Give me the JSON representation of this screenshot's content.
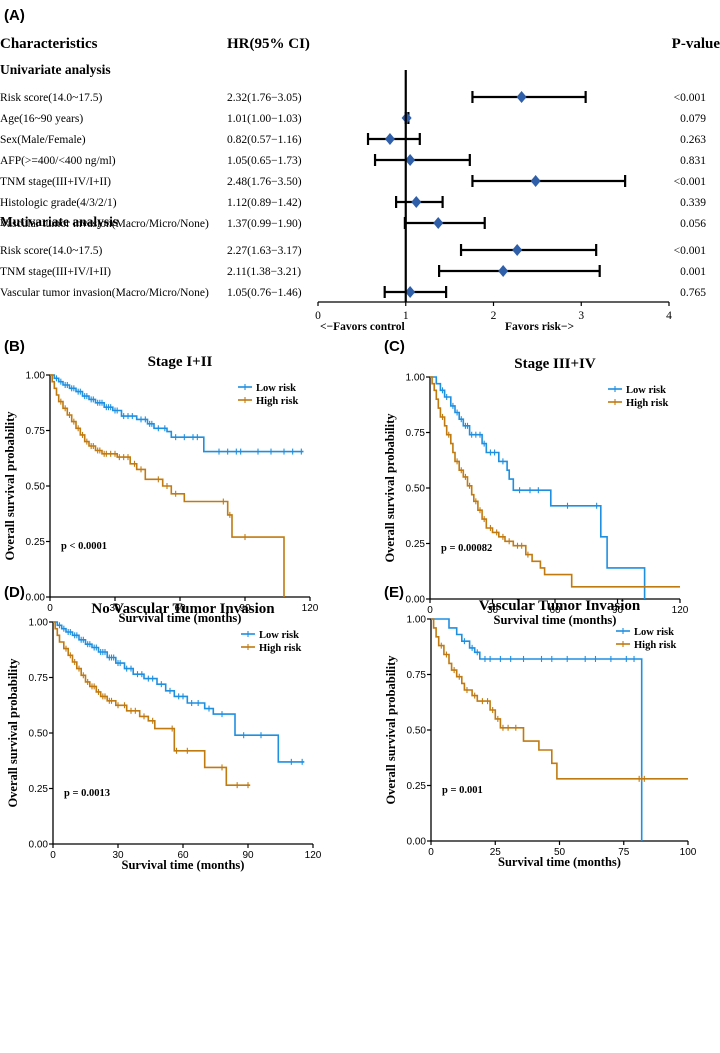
{
  "colors": {
    "low": "#1f8fe0",
    "high": "#c07a10",
    "diamond": "#2f5fa8",
    "axis": "#000000"
  },
  "forest": {
    "label": "(A)",
    "header": {
      "characteristics": "Characteristics",
      "hr": "HR(95% CI)",
      "pvalue": "P-value"
    },
    "xticks": [
      "0",
      "1",
      "2",
      "3",
      "4"
    ],
    "xlim": [
      0,
      4
    ],
    "xlabel_left": "<−Favors control",
    "xlabel_right": "Favors risk−>",
    "sections": [
      {
        "title": "Univariate analysis",
        "rows": [
          {
            "name": "Risk score(14.0~17.5)",
            "hr_text": "2.32(1.76−3.05)",
            "hr": 2.32,
            "lo": 1.76,
            "hi": 3.05,
            "p": "<0.001"
          },
          {
            "name": "Age(16~90 years)",
            "hr_text": "1.01(1.00−1.03)",
            "hr": 1.01,
            "lo": 1.0,
            "hi": 1.03,
            "p": "0.079"
          },
          {
            "name": "Sex(Male/Female)",
            "hr_text": "0.82(0.57−1.16)",
            "hr": 0.82,
            "lo": 0.57,
            "hi": 1.16,
            "p": "0.263"
          },
          {
            "name": "AFP(>=400/<400 ng/ml)",
            "hr_text": "1.05(0.65−1.73)",
            "hr": 1.05,
            "lo": 0.65,
            "hi": 1.73,
            "p": "0.831"
          },
          {
            "name": "TNM stage(III+IV/I+II)",
            "hr_text": "2.48(1.76−3.50)",
            "hr": 2.48,
            "lo": 1.76,
            "hi": 3.5,
            "p": "<0.001"
          },
          {
            "name": "Histologic grade(4/3/2/1)",
            "hr_text": "1.12(0.89−1.42)",
            "hr": 1.12,
            "lo": 0.89,
            "hi": 1.42,
            "p": "0.339"
          },
          {
            "name": "Vascular tumor invasion(Macro/Micro/None)",
            "hr_text": "1.37(0.99−1.90)",
            "hr": 1.37,
            "lo": 0.99,
            "hi": 1.9,
            "p": "0.056"
          }
        ]
      },
      {
        "title": "Mutivariate analysis",
        "rows": [
          {
            "name": "Risk score(14.0~17.5)",
            "hr_text": "2.27(1.63−3.17)",
            "hr": 2.27,
            "lo": 1.63,
            "hi": 3.17,
            "p": "<0.001"
          },
          {
            "name": "TNM stage(III+IV/I+II)",
            "hr_text": "2.11(1.38−3.21)",
            "hr": 2.11,
            "lo": 1.38,
            "hi": 3.21,
            "p": "0.001"
          },
          {
            "name": "Vascular tumor invasion(Macro/Micro/None)",
            "hr_text": "1.05(0.76−1.46)",
            "hr": 1.05,
            "lo": 0.76,
            "hi": 1.46,
            "p": "0.765"
          }
        ]
      }
    ]
  },
  "km_common": {
    "ylabel": "Overall survival probability",
    "xlabel": "Survival time (months)",
    "yticks": [
      "0.00",
      "0.25",
      "0.50",
      "0.75",
      "1.00"
    ],
    "legend": {
      "low": "Low risk",
      "high": "High risk"
    }
  },
  "chart_data": [
    {
      "type": "forest",
      "title": "(A)",
      "note": "Univariate and multivariate Cox analysis; values listed in forest.sections"
    },
    {
      "type": "line",
      "label": "(B)",
      "title": "Stage I+II",
      "pvalue": "p < 0.0001",
      "xlim": [
        0,
        120
      ],
      "ylim": [
        0,
        1
      ],
      "xticks": [
        "0",
        "30",
        "60",
        "90",
        "120"
      ],
      "series": [
        {
          "name": "Low risk",
          "step": [
            [
              0,
              1.0
            ],
            [
              2,
              0.985
            ],
            [
              4,
              0.97
            ],
            [
              6,
              0.955
            ],
            [
              9,
              0.94
            ],
            [
              12,
              0.925
            ],
            [
              15,
              0.905
            ],
            [
              18,
              0.89
            ],
            [
              21,
              0.875
            ],
            [
              25,
              0.855
            ],
            [
              29,
              0.84
            ],
            [
              33,
              0.815
            ],
            [
              40,
              0.8
            ],
            [
              45,
              0.78
            ],
            [
              48,
              0.76
            ],
            [
              54,
              0.745
            ],
            [
              56,
              0.72
            ],
            [
              71,
              0.655
            ],
            [
              117,
              0.655
            ]
          ],
          "censor": [
            3,
            5,
            7,
            8,
            10,
            11,
            13,
            14,
            16,
            17,
            19,
            20,
            22,
            23,
            24,
            26,
            27,
            28,
            30,
            31,
            34,
            36,
            38,
            42,
            44,
            46,
            47,
            50,
            53,
            58,
            62,
            66,
            68,
            78,
            82,
            86,
            88,
            96,
            102,
            108,
            112,
            116
          ]
        },
        {
          "name": "High risk",
          "step": [
            [
              0,
              1.0
            ],
            [
              1,
              0.97
            ],
            [
              2,
              0.94
            ],
            [
              3,
              0.91
            ],
            [
              4,
              0.88
            ],
            [
              6,
              0.85
            ],
            [
              8,
              0.82
            ],
            [
              10,
              0.79
            ],
            [
              12,
              0.76
            ],
            [
              14,
              0.73
            ],
            [
              16,
              0.7
            ],
            [
              18,
              0.68
            ],
            [
              21,
              0.66
            ],
            [
              24,
              0.645
            ],
            [
              31,
              0.63
            ],
            [
              37,
              0.6
            ],
            [
              40,
              0.575
            ],
            [
              44,
              0.53
            ],
            [
              52,
              0.5
            ],
            [
              56,
              0.465
            ],
            [
              62,
              0.43
            ],
            [
              82,
              0.37
            ],
            [
              84,
              0.27
            ],
            [
              108,
              0.0
            ]
          ],
          "censor": [
            5,
            7,
            9,
            11,
            13,
            15,
            17,
            19,
            20,
            22,
            23,
            25,
            26,
            28,
            30,
            32,
            34,
            36,
            39,
            42,
            50,
            54,
            58,
            80,
            83,
            90
          ]
        }
      ]
    },
    {
      "type": "line",
      "label": "(C)",
      "title": "Stage III+IV",
      "pvalue": "p = 0.00082",
      "xlim": [
        0,
        120
      ],
      "ylim": [
        0,
        1
      ],
      "xticks": [
        "0",
        "30",
        "60",
        "90",
        "120"
      ],
      "series": [
        {
          "name": "Low risk",
          "step": [
            [
              0,
              1.0
            ],
            [
              3,
              0.97
            ],
            [
              5,
              0.94
            ],
            [
              7,
              0.91
            ],
            [
              10,
              0.87
            ],
            [
              12,
              0.84
            ],
            [
              14,
              0.81
            ],
            [
              16,
              0.78
            ],
            [
              19,
              0.74
            ],
            [
              25,
              0.7
            ],
            [
              27,
              0.66
            ],
            [
              33,
              0.62
            ],
            [
              37,
              0.58
            ],
            [
              38,
              0.54
            ],
            [
              40,
              0.49
            ],
            [
              58,
              0.42
            ],
            [
              82,
              0.28
            ],
            [
              85,
              0.14
            ],
            [
              103,
              0.0
            ]
          ],
          "censor": [
            6,
            8,
            11,
            13,
            15,
            17,
            18,
            20,
            22,
            24,
            26,
            29,
            31,
            35,
            43,
            48,
            52,
            66,
            80
          ]
        },
        {
          "name": "High risk",
          "step": [
            [
              0,
              1.0
            ],
            [
              1,
              0.97
            ],
            [
              2,
              0.94
            ],
            [
              3,
              0.9
            ],
            [
              4,
              0.86
            ],
            [
              5,
              0.82
            ],
            [
              7,
              0.78
            ],
            [
              8,
              0.74
            ],
            [
              10,
              0.7
            ],
            [
              11,
              0.66
            ],
            [
              12,
              0.62
            ],
            [
              14,
              0.58
            ],
            [
              16,
              0.55
            ],
            [
              18,
              0.51
            ],
            [
              20,
              0.47
            ],
            [
              21,
              0.44
            ],
            [
              23,
              0.4
            ],
            [
              25,
              0.36
            ],
            [
              27,
              0.32
            ],
            [
              30,
              0.3
            ],
            [
              33,
              0.28
            ],
            [
              36,
              0.26
            ],
            [
              40,
              0.24
            ],
            [
              46,
              0.2
            ],
            [
              49,
              0.17
            ],
            [
              53,
              0.14
            ],
            [
              55,
              0.11
            ],
            [
              68,
              0.055
            ],
            [
              120,
              0.055
            ]
          ],
          "censor": [
            6,
            9,
            13,
            15,
            17,
            19,
            22,
            24,
            26,
            29,
            32,
            35,
            38,
            42,
            44,
            47
          ]
        }
      ]
    },
    {
      "type": "line",
      "label": "(D)",
      "title": "No Vascular Tumor Invasion",
      "pvalue": "p = 0.0013",
      "xlim": [
        0,
        120
      ],
      "ylim": [
        0,
        1
      ],
      "xticks": [
        "0",
        "30",
        "60",
        "90",
        "120"
      ],
      "series": [
        {
          "name": "Low risk",
          "step": [
            [
              0,
              1.0
            ],
            [
              2,
              0.985
            ],
            [
              4,
              0.97
            ],
            [
              6,
              0.955
            ],
            [
              9,
              0.94
            ],
            [
              12,
              0.92
            ],
            [
              15,
              0.9
            ],
            [
              18,
              0.885
            ],
            [
              21,
              0.865
            ],
            [
              25,
              0.84
            ],
            [
              29,
              0.815
            ],
            [
              33,
              0.79
            ],
            [
              37,
              0.765
            ],
            [
              42,
              0.745
            ],
            [
              48,
              0.72
            ],
            [
              52,
              0.69
            ],
            [
              56,
              0.665
            ],
            [
              62,
              0.635
            ],
            [
              70,
              0.61
            ],
            [
              74,
              0.585
            ],
            [
              84,
              0.49
            ],
            [
              104,
              0.37
            ],
            [
              116,
              0.37
            ]
          ],
          "censor": [
            3,
            5,
            7,
            8,
            10,
            11,
            13,
            14,
            16,
            17,
            19,
            20,
            22,
            23,
            24,
            26,
            27,
            28,
            30,
            31,
            34,
            36,
            39,
            41,
            44,
            46,
            50,
            54,
            58,
            60,
            64,
            67,
            72,
            78,
            88,
            96,
            110,
            115
          ]
        },
        {
          "name": "High risk",
          "step": [
            [
              0,
              1.0
            ],
            [
              1,
              0.97
            ],
            [
              2,
              0.94
            ],
            [
              3,
              0.91
            ],
            [
              5,
              0.88
            ],
            [
              7,
              0.85
            ],
            [
              9,
              0.82
            ],
            [
              11,
              0.79
            ],
            [
              13,
              0.76
            ],
            [
              15,
              0.73
            ],
            [
              17,
              0.71
            ],
            [
              20,
              0.685
            ],
            [
              22,
              0.665
            ],
            [
              25,
              0.645
            ],
            [
              29,
              0.625
            ],
            [
              34,
              0.6
            ],
            [
              40,
              0.575
            ],
            [
              44,
              0.555
            ],
            [
              47,
              0.52
            ],
            [
              56,
              0.42
            ],
            [
              70,
              0.345
            ],
            [
              80,
              0.265
            ],
            [
              91,
              0.265
            ]
          ],
          "censor": [
            6,
            8,
            10,
            12,
            14,
            16,
            18,
            19,
            21,
            23,
            24,
            26,
            27,
            30,
            33,
            36,
            38,
            42,
            46,
            55,
            57,
            62,
            78,
            85,
            90
          ]
        }
      ]
    },
    {
      "type": "line",
      "label": "(E)",
      "title": "Vascular Tumor Invasion",
      "pvalue": "p = 0.001",
      "xlim": [
        0,
        100
      ],
      "ylim": [
        0,
        1
      ],
      "xticks": [
        "0",
        "25",
        "50",
        "75",
        "100"
      ],
      "series": [
        {
          "name": "Low risk",
          "step": [
            [
              0,
              1.0
            ],
            [
              7,
              0.96
            ],
            [
              10,
              0.93
            ],
            [
              12,
              0.9
            ],
            [
              15,
              0.87
            ],
            [
              17,
              0.85
            ],
            [
              19,
              0.82
            ],
            [
              82,
              0.0
            ]
          ],
          "censor": [
            13,
            16,
            18,
            21,
            23,
            27,
            31,
            36,
            43,
            47,
            53,
            60,
            64,
            70,
            76,
            79
          ]
        },
        {
          "name": "High risk",
          "step": [
            [
              0,
              1.0
            ],
            [
              1,
              0.96
            ],
            [
              2,
              0.92
            ],
            [
              3,
              0.88
            ],
            [
              5,
              0.84
            ],
            [
              7,
              0.8
            ],
            [
              8,
              0.77
            ],
            [
              10,
              0.74
            ],
            [
              12,
              0.71
            ],
            [
              13,
              0.68
            ],
            [
              16,
              0.655
            ],
            [
              18,
              0.63
            ],
            [
              23,
              0.59
            ],
            [
              25,
              0.55
            ],
            [
              27,
              0.51
            ],
            [
              36,
              0.45
            ],
            [
              42,
              0.41
            ],
            [
              47,
              0.35
            ],
            [
              49,
              0.28
            ],
            [
              100,
              0.28
            ]
          ],
          "censor": [
            4,
            6,
            9,
            11,
            14,
            17,
            20,
            22,
            24,
            26,
            28,
            30,
            33,
            81,
            82,
            83
          ]
        }
      ]
    }
  ]
}
